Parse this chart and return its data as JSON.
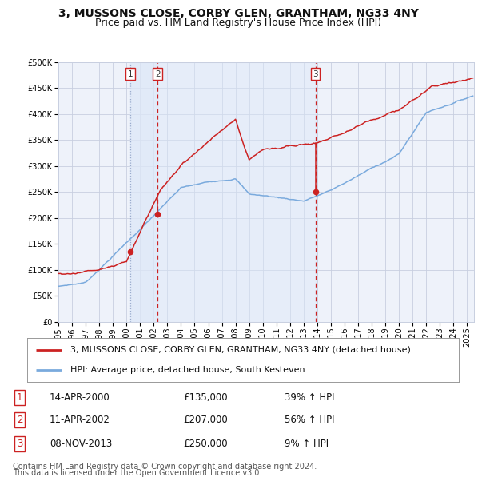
{
  "title": "3, MUSSONS CLOSE, CORBY GLEN, GRANTHAM, NG33 4NY",
  "subtitle": "Price paid vs. HM Land Registry's House Price Index (HPI)",
  "legend_label_red": "3, MUSSONS CLOSE, CORBY GLEN, GRANTHAM, NG33 4NY (detached house)",
  "legend_label_blue": "HPI: Average price, detached house, South Kesteven",
  "footer1": "Contains HM Land Registry data © Crown copyright and database right 2024.",
  "footer2": "This data is licensed under the Open Government Licence v3.0.",
  "transactions": [
    {
      "num": 1,
      "date": "14-APR-2000",
      "price": 135000,
      "price_str": "£135,000",
      "pct": "39%",
      "dir": "↑",
      "year_dec": 2000.29
    },
    {
      "num": 2,
      "date": "11-APR-2002",
      "price": 207000,
      "price_str": "£207,000",
      "pct": "56%",
      "dir": "↑",
      "year_dec": 2002.29
    },
    {
      "num": 3,
      "date": "08-NOV-2013",
      "price": 250000,
      "price_str": "£250,000",
      "pct": "9%",
      "dir": "↑",
      "year_dec": 2013.86
    }
  ],
  "ylim": [
    0,
    500000
  ],
  "xlim_start": 1995.0,
  "xlim_end": 2025.5,
  "background_color": "#ffffff",
  "plot_bg_color": "#eef2fa",
  "grid_color": "#c8cfe0",
  "red_line_color": "#cc2222",
  "blue_line_color": "#7aaadd",
  "dot_color": "#cc2222",
  "vline_dashed_color": "#cc2222",
  "vline_dotted_color": "#99aacc",
  "shade_color": "#dde8f8",
  "title_fontsize": 10,
  "subtitle_fontsize": 9,
  "tick_fontsize": 7,
  "legend_fontsize": 8,
  "table_fontsize": 8.5,
  "footer_fontsize": 7
}
